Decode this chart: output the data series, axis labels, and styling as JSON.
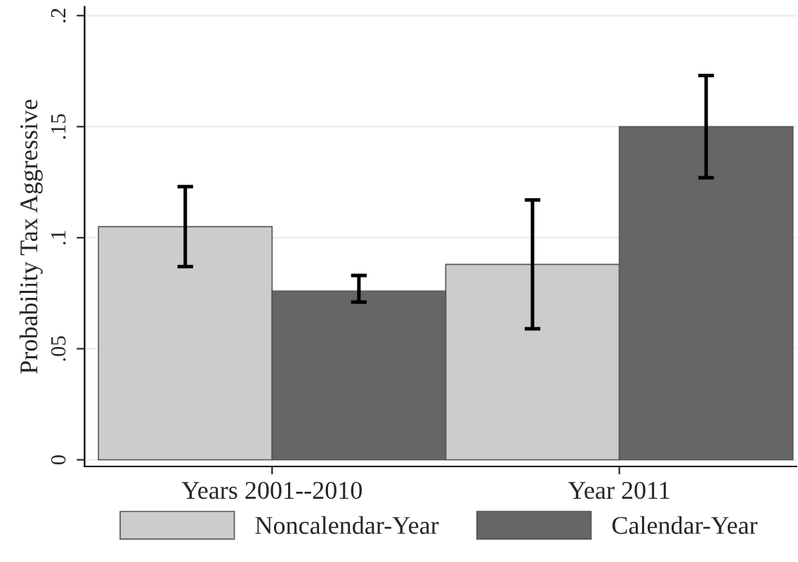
{
  "chart_data": {
    "type": "bar",
    "ylabel": "Probability Tax Aggressive",
    "categories": [
      "Years 2001--2010",
      "Year 2011"
    ],
    "series": [
      {
        "name": "Noncalendar-Year",
        "color": "#cccccc",
        "values": [
          0.105,
          0.088
        ],
        "errors": [
          [
            0.087,
            0.123
          ],
          [
            0.059,
            0.117
          ]
        ]
      },
      {
        "name": "Calendar-Year",
        "color": "#666666",
        "values": [
          0.076,
          0.15
        ],
        "errors": [
          [
            0.071,
            0.083
          ],
          [
            0.127,
            0.173
          ]
        ]
      }
    ],
    "ylim": [
      -0.003,
      0.204
    ],
    "yticks": [
      {
        "value": 0,
        "label": "0"
      },
      {
        "value": 0.05,
        "label": ".05"
      },
      {
        "value": 0.1,
        "label": ".1"
      },
      {
        "value": 0.15,
        "label": ".15"
      },
      {
        "value": 0.2,
        "label": ".2"
      }
    ],
    "grid": "y",
    "legend": "bottom"
  }
}
